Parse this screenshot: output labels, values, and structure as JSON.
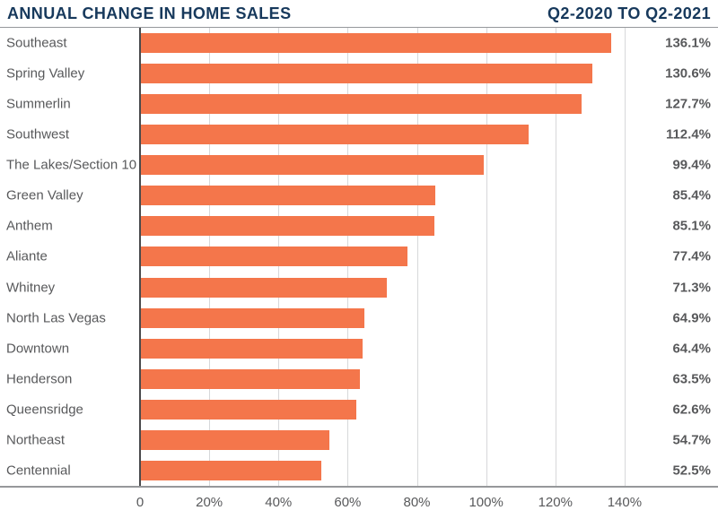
{
  "chart_data": {
    "type": "bar",
    "orientation": "horizontal",
    "title": "ANNUAL CHANGE IN HOME SALES",
    "subtitle": "Q2-2020 TO Q2-2021",
    "categories": [
      "Southeast",
      "Spring Valley",
      "Summerlin",
      "Southwest",
      "The Lakes/Section 10",
      "Green Valley",
      "Anthem",
      "Aliante",
      "Whitney",
      "North Las Vegas",
      "Downtown",
      "Henderson",
      "Queensridge",
      "Northeast",
      "Centennial"
    ],
    "values": [
      136.1,
      130.6,
      127.7,
      112.4,
      99.4,
      85.4,
      85.1,
      77.4,
      71.3,
      64.9,
      64.4,
      63.5,
      62.6,
      54.7,
      52.5
    ],
    "value_labels": [
      "136.1%",
      "130.6%",
      "127.7%",
      "112.4%",
      "99.4%",
      "85.4%",
      "85.1%",
      "77.4%",
      "71.3%",
      "64.9%",
      "64.4%",
      "63.5%",
      "62.6%",
      "54.7%",
      "52.5%"
    ],
    "x_ticks": [
      "0",
      "20%",
      "40%",
      "60%",
      "80%",
      "100%",
      "120%",
      "140%"
    ],
    "x_tick_values": [
      0,
      20,
      40,
      60,
      80,
      100,
      120,
      140
    ],
    "xlim": [
      0,
      167
    ],
    "xlabel": "",
    "ylabel": "",
    "grid": true,
    "legend": "none",
    "colors": {
      "bar": "#F4764B",
      "title": "#17395C",
      "label": "#58595B",
      "grid": "#D7D8DA",
      "axis_line": "#4A4A4C",
      "rule": "#96989B"
    }
  }
}
